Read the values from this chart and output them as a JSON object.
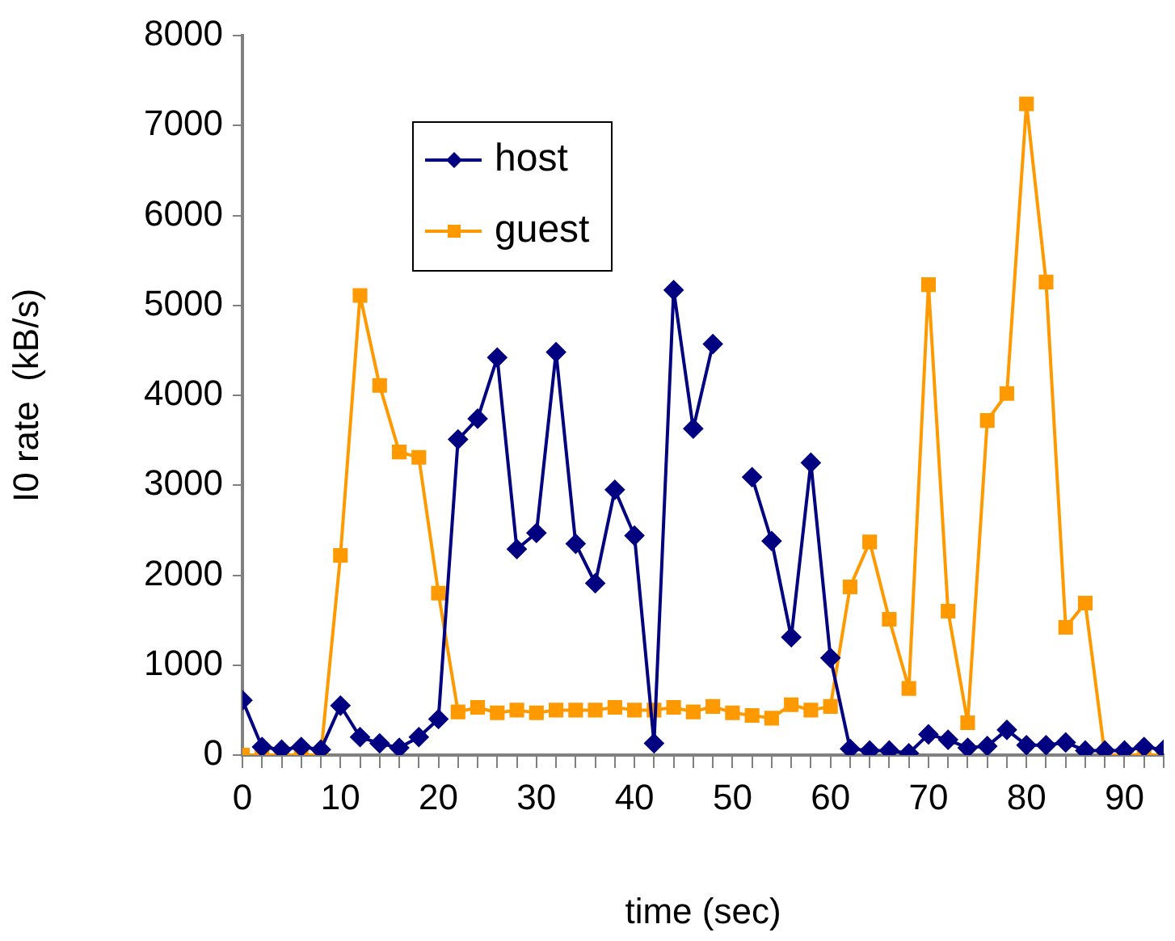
{
  "chart_data": {
    "type": "line",
    "xlabel": "time (sec)",
    "ylabel": "I0 rate  (kB/s)",
    "x": [
      0,
      2,
      4,
      6,
      8,
      10,
      12,
      14,
      16,
      18,
      20,
      22,
      24,
      26,
      28,
      30,
      32,
      34,
      36,
      38,
      40,
      42,
      44,
      46,
      48,
      50,
      52,
      54,
      56,
      58,
      60,
      62,
      64,
      66,
      68,
      70,
      72,
      74,
      76,
      78,
      80,
      82,
      84,
      86,
      88,
      90,
      92,
      94
    ],
    "series": [
      {
        "name": "host",
        "color": "#000080",
        "marker": "diamond",
        "values": [
          610,
          90,
          60,
          90,
          60,
          550,
          200,
          130,
          80,
          200,
          400,
          3510,
          3740,
          4420,
          2290,
          2470,
          4480,
          2350,
          1910,
          2950,
          2440,
          130,
          5170,
          3630,
          4570,
          null,
          3090,
          2380,
          1310,
          3250,
          1080,
          70,
          50,
          50,
          20,
          230,
          170,
          80,
          100,
          280,
          110,
          110,
          140,
          50,
          50,
          50,
          90,
          60
        ]
      },
      {
        "name": "guest",
        "color": "#ff9900",
        "marker": "square",
        "values": [
          0,
          0,
          0,
          0,
          0,
          2220,
          5110,
          4110,
          3370,
          3310,
          1800,
          480,
          530,
          470,
          500,
          470,
          500,
          500,
          500,
          530,
          500,
          500,
          530,
          480,
          540,
          470,
          440,
          410,
          560,
          500,
          540,
          1870,
          2370,
          1510,
          740,
          5230,
          1600,
          360,
          3720,
          4020,
          7240,
          5260,
          1420,
          1690,
          0,
          0,
          0,
          0
        ]
      }
    ],
    "xlim": [
      0,
      94
    ],
    "xticks": [
      0,
      {
        "value": 2,
        "label": null
      },
      {
        "value": 4,
        "label": null
      },
      {
        "value": 6,
        "label": null
      },
      {
        "value": 8,
        "label": null
      },
      10,
      {
        "value": 12,
        "label": null
      },
      {
        "value": 14,
        "label": null
      },
      {
        "value": 16,
        "label": null
      },
      {
        "value": 18,
        "label": null
      },
      20,
      {
        "value": 22,
        "label": null
      },
      {
        "value": 24,
        "label": null
      },
      {
        "value": 26,
        "label": null
      },
      {
        "value": 28,
        "label": null
      },
      30,
      {
        "value": 32,
        "label": null
      },
      {
        "value": 34,
        "label": null
      },
      {
        "value": 36,
        "label": null
      },
      {
        "value": 38,
        "label": null
      },
      40,
      {
        "value": 42,
        "label": null
      },
      {
        "value": 44,
        "label": null
      },
      {
        "value": 46,
        "label": null
      },
      {
        "value": 48,
        "label": null
      },
      50,
      {
        "value": 52,
        "label": null
      },
      {
        "value": 54,
        "label": null
      },
      {
        "value": 56,
        "label": null
      },
      {
        "value": 58,
        "label": null
      },
      60,
      {
        "value": 62,
        "label": null
      },
      {
        "value": 64,
        "label": null
      },
      {
        "value": 66,
        "label": null
      },
      {
        "value": 68,
        "label": null
      },
      70,
      {
        "value": 72,
        "label": null
      },
      {
        "value": 74,
        "label": null
      },
      {
        "value": 76,
        "label": null
      },
      {
        "value": 78,
        "label": null
      },
      80,
      {
        "value": 82,
        "label": null
      },
      {
        "value": 84,
        "label": null
      },
      {
        "value": 86,
        "label": null
      },
      {
        "value": 88,
        "label": null
      },
      90,
      {
        "value": 92,
        "label": null
      },
      {
        "value": 94,
        "label": null
      }
    ],
    "ylim": [
      0,
      8000
    ],
    "yticks": [
      0,
      1000,
      2000,
      3000,
      4000,
      5000,
      6000,
      7000,
      8000
    ],
    "grid": false,
    "legend": "top left"
  }
}
